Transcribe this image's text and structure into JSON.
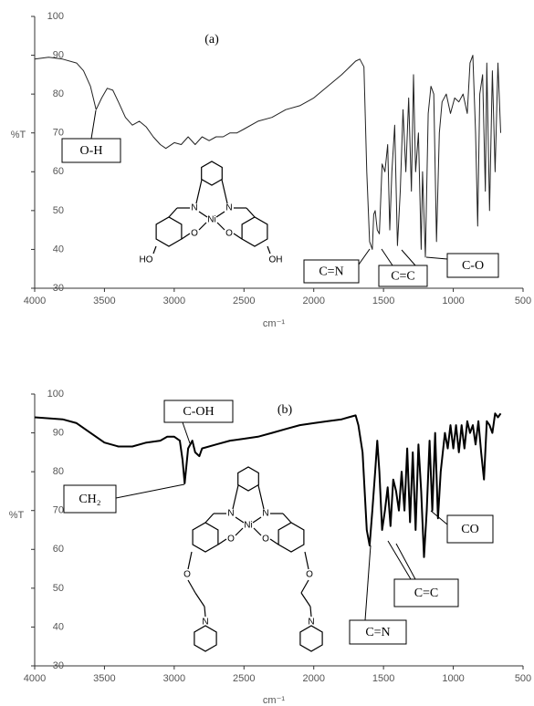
{
  "chart_data": [
    {
      "type": "line",
      "title": "(a)",
      "x_label": "cm⁻¹",
      "y_label": "%T",
      "xlim": [
        4000,
        500
      ],
      "ylim": [
        30,
        100
      ],
      "xticks": [
        4000,
        3500,
        3000,
        2500,
        2000,
        1500,
        1000,
        500
      ],
      "yticks": [
        30,
        40,
        50,
        60,
        70,
        80,
        90,
        100
      ],
      "color": "#222",
      "x": [
        4000,
        3900,
        3800,
        3700,
        3650,
        3600,
        3560,
        3520,
        3480,
        3440,
        3400,
        3350,
        3300,
        3250,
        3200,
        3150,
        3100,
        3060,
        3000,
        2950,
        2900,
        2850,
        2800,
        2750,
        2700,
        2650,
        2600,
        2550,
        2500,
        2400,
        2300,
        2200,
        2100,
        2000,
        1900,
        1800,
        1700,
        1670,
        1640,
        1620,
        1600,
        1580,
        1570,
        1560,
        1545,
        1530,
        1510,
        1490,
        1470,
        1455,
        1440,
        1420,
        1400,
        1380,
        1360,
        1340,
        1320,
        1300,
        1285,
        1270,
        1250,
        1230,
        1220,
        1200,
        1180,
        1160,
        1140,
        1120,
        1100,
        1080,
        1050,
        1020,
        990,
        960,
        930,
        900,
        880,
        860,
        840,
        825,
        810,
        790,
        770,
        760,
        740,
        720,
        700,
        680,
        660
      ],
      "values": [
        89,
        89.5,
        89,
        88,
        86,
        82,
        76,
        79,
        81.5,
        81,
        78,
        74,
        72,
        73,
        71.5,
        69,
        67,
        66,
        67.5,
        67,
        69,
        67,
        69,
        68,
        69,
        69,
        70,
        70,
        71,
        73,
        74,
        76,
        77,
        79,
        82,
        85,
        88.5,
        89,
        87,
        60,
        42,
        40,
        49,
        50,
        45,
        44,
        62,
        60,
        67,
        45,
        60,
        72,
        41,
        55,
        76,
        60,
        79,
        55,
        85,
        60,
        70,
        40,
        60,
        38,
        75,
        82,
        80,
        42,
        70,
        78,
        80,
        75,
        79,
        78,
        80,
        75,
        88,
        90,
        70,
        46,
        80,
        85,
        55,
        88,
        50,
        86,
        60,
        88,
        70
      ],
      "annotations": [
        "O-H",
        "C=N",
        "C=C",
        "C-O"
      ],
      "structure_labels": [
        "N",
        "N",
        "Ni",
        "O",
        "O",
        "HO",
        "OH"
      ]
    },
    {
      "type": "line",
      "title": "(b)",
      "x_label": "cm⁻¹",
      "y_label": "%T",
      "xlim": [
        4000,
        500
      ],
      "ylim": [
        30,
        100
      ],
      "xticks": [
        4000,
        3500,
        3000,
        2500,
        2000,
        1500,
        1000,
        500
      ],
      "yticks": [
        30,
        40,
        50,
        60,
        70,
        80,
        90,
        100
      ],
      "color": "#000",
      "x": [
        4000,
        3800,
        3700,
        3600,
        3500,
        3400,
        3300,
        3200,
        3100,
        3050,
        3000,
        2960,
        2940,
        2925,
        2900,
        2870,
        2850,
        2820,
        2800,
        2700,
        2600,
        2500,
        2400,
        2300,
        2200,
        2100,
        2000,
        1900,
        1800,
        1750,
        1700,
        1680,
        1650,
        1620,
        1600,
        1580,
        1560,
        1545,
        1530,
        1510,
        1490,
        1470,
        1450,
        1430,
        1410,
        1390,
        1370,
        1350,
        1330,
        1310,
        1290,
        1270,
        1250,
        1230,
        1210,
        1190,
        1170,
        1150,
        1130,
        1110,
        1090,
        1060,
        1040,
        1020,
        1000,
        980,
        960,
        940,
        920,
        900,
        880,
        860,
        840,
        820,
        800,
        780,
        760,
        740,
        720,
        700,
        680,
        660
      ],
      "values": [
        94,
        93.5,
        92.5,
        90,
        87.5,
        86.5,
        86.5,
        87.5,
        88,
        89,
        89,
        88,
        83,
        77,
        86,
        88,
        85,
        84,
        86,
        87,
        88,
        88.5,
        89,
        90,
        91,
        92,
        92.5,
        93,
        93.5,
        94,
        94.5,
        92,
        85,
        65,
        61,
        70,
        80,
        88,
        80,
        65,
        70,
        76,
        66,
        78,
        75,
        70,
        80,
        70,
        86,
        67,
        85,
        65,
        87,
        75,
        58,
        70,
        88,
        70,
        90,
        68,
        80,
        90,
        86,
        92,
        86,
        92,
        85,
        92,
        86,
        93,
        90,
        92,
        87,
        93,
        85,
        78,
        93,
        92,
        90,
        95,
        94,
        95
      ],
      "annotations": [
        "C-OH",
        "CH₂",
        "C=N",
        "C=C",
        "CO"
      ],
      "structure_labels": [
        "N",
        "N",
        "Ni",
        "O",
        "O",
        "O",
        "O",
        "N",
        "N"
      ]
    }
  ]
}
